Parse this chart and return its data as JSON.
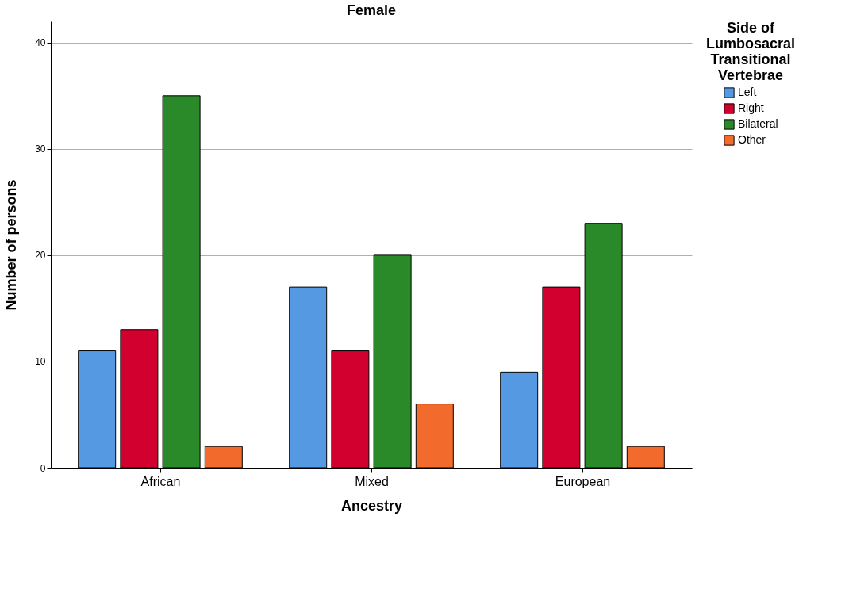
{
  "chart_data": {
    "type": "bar",
    "title": "Female",
    "xlabel": "Ancestry",
    "ylabel": "Number of persons",
    "legend_title": "Side of Lumbosacral Transitional Vertebrae",
    "categories": [
      "African",
      "Mixed",
      "European"
    ],
    "series": [
      {
        "name": "Left",
        "color": "#5599e3",
        "values": [
          11,
          17,
          9
        ]
      },
      {
        "name": "Right",
        "color": "#d1002e",
        "values": [
          13,
          11,
          17
        ]
      },
      {
        "name": "Bilateral",
        "color": "#2a8a2a",
        "values": [
          35,
          20,
          23
        ]
      },
      {
        "name": "Other",
        "color": "#f26a2c",
        "values": [
          2,
          6,
          2
        ]
      }
    ],
    "ylim": [
      0,
      42
    ],
    "yticks": [
      0,
      10,
      20,
      30,
      40
    ],
    "grid": "y",
    "legend": "top right"
  }
}
